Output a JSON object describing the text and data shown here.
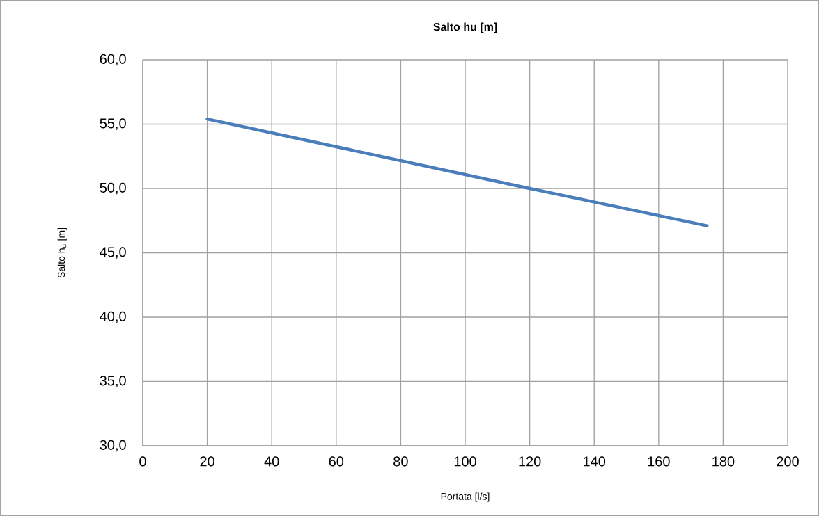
{
  "chart_data": {
    "type": "line",
    "title": "**Salto hu [m]**",
    "xlabel": "Portata [l/s]",
    "ylabel": "Salto h$_{u}$ [m]",
    "x": [
      20,
      120,
      175
    ],
    "series": [
      {
        "color": "#4a7ebb",
        "values": [
          55.4,
          50.0,
          47.1
        ]
      }
    ],
    "xlim": [
      0,
      200
    ],
    "xticks": [
      0,
      20,
      40,
      60,
      80,
      100,
      120,
      140,
      160,
      180,
      200
    ],
    "ylim": [
      30,
      60
    ],
    "yticks": [
      {
        "value": 30,
        "label": "30,0"
      },
      {
        "value": 35,
        "label": "35,0"
      },
      {
        "value": 40,
        "label": "40,0"
      },
      {
        "value": 45,
        "label": "45,0"
      },
      {
        "value": 50,
        "label": "50,0"
      },
      {
        "value": 55,
        "label": "55,0"
      },
      {
        "value": 60,
        "label": "60,0"
      }
    ],
    "grid": true,
    "marker": "none",
    "line_style": "solid"
  }
}
